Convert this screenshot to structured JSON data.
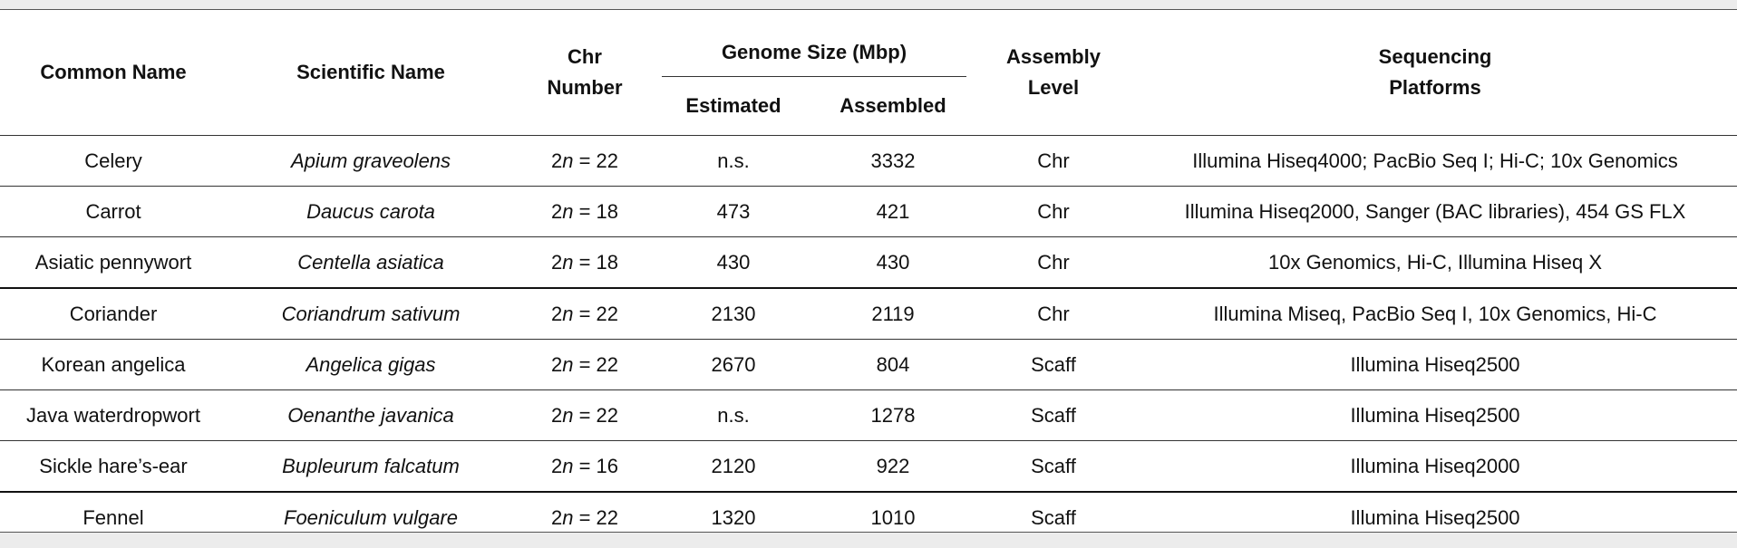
{
  "headers": {
    "common_name": "Common Name",
    "scientific_name": "Scientific Name",
    "chr_number": [
      "Chr",
      "Number"
    ],
    "genome_size": "Genome Size (Mbp)",
    "estimated": "Estimated",
    "assembled": "Assembled",
    "assembly_level": [
      "Assembly",
      "Level"
    ],
    "sequencing_platforms": [
      "Sequencing",
      "Platforms"
    ]
  },
  "rows": [
    {
      "common": "Celery",
      "scientific": "Apium graveolens",
      "chr_prefix": "2",
      "chr_var": "n",
      "chr_suffix": " = 22",
      "estimated": "n.s.",
      "assembled": "3332",
      "level": "Chr",
      "platforms": "Illumina Hiseq4000; PacBio Seq I; Hi-C; 10x Genomics"
    },
    {
      "common": "Carrot",
      "scientific": "Daucus carota",
      "chr_prefix": "2",
      "chr_var": "n",
      "chr_suffix": " = 18",
      "estimated": "473",
      "assembled": "421",
      "level": "Chr",
      "platforms": "Illumina Hiseq2000, Sanger (BAC libraries), 454 GS FLX"
    },
    {
      "common": "Asiatic pennywort",
      "scientific": "Centella asiatica",
      "chr_prefix": "2",
      "chr_var": "n",
      "chr_suffix": " = 18",
      "estimated": "430",
      "assembled": "430",
      "level": "Chr",
      "platforms": "10x Genomics, Hi-C, Illumina Hiseq X"
    },
    {
      "common": "Coriander",
      "scientific": "Coriandrum sativum",
      "chr_prefix": "2",
      "chr_var": "n",
      "chr_suffix": " = 22",
      "estimated": "2130",
      "assembled": "2119",
      "level": "Chr",
      "platforms": "Illumina Miseq, PacBio Seq I, 10x Genomics, Hi-C"
    },
    {
      "common": "Korean angelica",
      "scientific": "Angelica gigas",
      "chr_prefix": "2",
      "chr_var": "n",
      "chr_suffix": " = 22",
      "estimated": "2670",
      "assembled": "804",
      "level": "Scaff",
      "platforms": "Illumina Hiseq2500"
    },
    {
      "common": "Java waterdropwort",
      "scientific": "Oenanthe javanica",
      "chr_prefix": "2",
      "chr_var": "n",
      "chr_suffix": " = 22",
      "estimated": "n.s.",
      "assembled": "1278",
      "level": "Scaff",
      "platforms": "Illumina Hiseq2500"
    },
    {
      "common": "Sickle hare’s-ear",
      "scientific": "Bupleurum falcatum",
      "chr_prefix": "2",
      "chr_var": "n",
      "chr_suffix": " = 16",
      "estimated": "2120",
      "assembled": "922",
      "level": "Scaff",
      "platforms": "Illumina Hiseq2000"
    },
    {
      "common": "Fennel",
      "scientific": "Foeniculum vulgare",
      "chr_prefix": "2",
      "chr_var": "n",
      "chr_suffix": " = 22",
      "estimated": "1320",
      "assembled": "1010",
      "level": "Scaff",
      "platforms": "Illumina Hiseq2500"
    }
  ]
}
